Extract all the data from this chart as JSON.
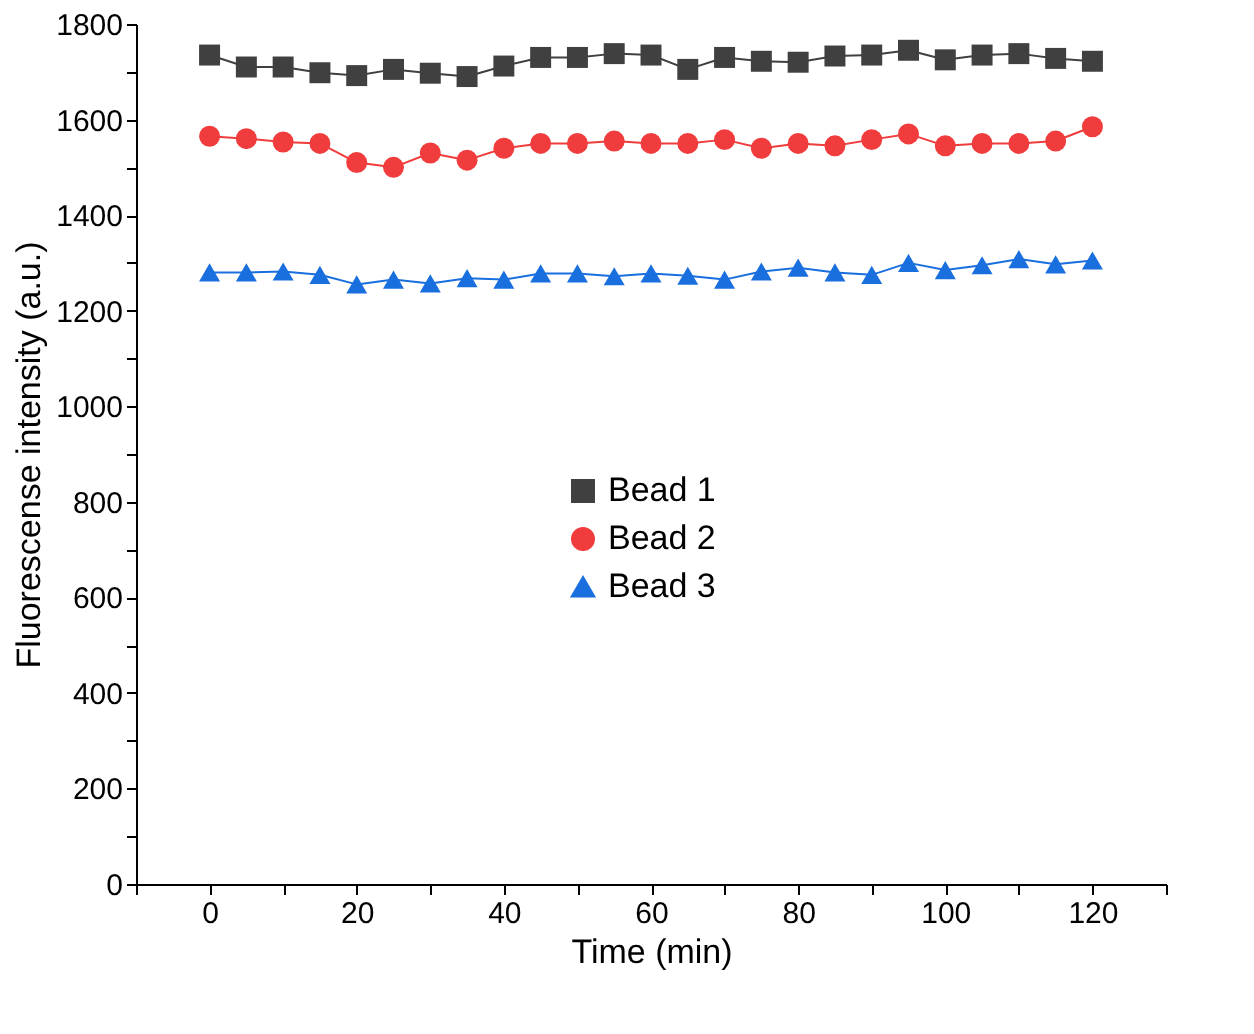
{
  "chart_data": {
    "type": "line",
    "xlabel": "Time (min)",
    "ylabel": "Fluorescense intensity (a.u.)",
    "x": [
      0,
      5,
      10,
      15,
      20,
      25,
      30,
      35,
      40,
      45,
      50,
      55,
      60,
      65,
      70,
      75,
      80,
      85,
      90,
      95,
      100,
      105,
      110,
      115,
      120
    ],
    "series": [
      {
        "name": "Bead 1",
        "color": "#404040",
        "marker": "square",
        "values": [
          1735,
          1710,
          1710,
          1698,
          1692,
          1705,
          1697,
          1690,
          1712,
          1730,
          1730,
          1738,
          1735,
          1705,
          1730,
          1722,
          1720,
          1733,
          1735,
          1745,
          1725,
          1735,
          1738,
          1728,
          1722
        ]
      },
      {
        "name": "Bead 2",
        "color": "#f03c3c",
        "marker": "circle",
        "values": [
          1565,
          1560,
          1553,
          1550,
          1510,
          1500,
          1530,
          1515,
          1540,
          1550,
          1550,
          1555,
          1550,
          1550,
          1558,
          1540,
          1550,
          1545,
          1558,
          1570,
          1545,
          1550,
          1550,
          1555,
          1585
        ]
      },
      {
        "name": "Bead 3",
        "color": "#1a6fdf",
        "marker": "triangle",
        "values": [
          1280,
          1280,
          1282,
          1275,
          1255,
          1265,
          1257,
          1268,
          1265,
          1278,
          1278,
          1272,
          1278,
          1273,
          1265,
          1282,
          1290,
          1280,
          1275,
          1300,
          1285,
          1295,
          1308,
          1297,
          1305
        ]
      }
    ],
    "xlim": [
      -10,
      130
    ],
    "xticks": [
      {
        "value": -10,
        "label": null
      },
      0,
      {
        "value": 10,
        "label": null
      },
      20,
      {
        "value": 30,
        "label": null
      },
      40,
      {
        "value": 50,
        "label": null
      },
      60,
      {
        "value": 70,
        "label": null
      },
      80,
      {
        "value": 90,
        "label": null
      },
      100,
      {
        "value": 110,
        "label": null
      },
      120,
      {
        "value": 130,
        "label": null
      }
    ],
    "ylim": [
      0,
      1800
    ],
    "yticks": [
      0,
      {
        "value": 100,
        "label": null
      },
      200,
      {
        "value": 300,
        "label": null
      },
      400,
      {
        "value": 500,
        "label": null
      },
      600,
      {
        "value": 700,
        "label": null
      },
      800,
      {
        "value": 900,
        "label": null
      },
      1000,
      {
        "value": 1100,
        "label": null
      },
      1200,
      {
        "value": 1300,
        "label": null
      },
      1400,
      {
        "value": 1500,
        "label": null
      },
      1600,
      {
        "value": 1700,
        "label": null
      },
      1800
    ],
    "grid": false,
    "legend": "center",
    "line_style": "solid"
  }
}
